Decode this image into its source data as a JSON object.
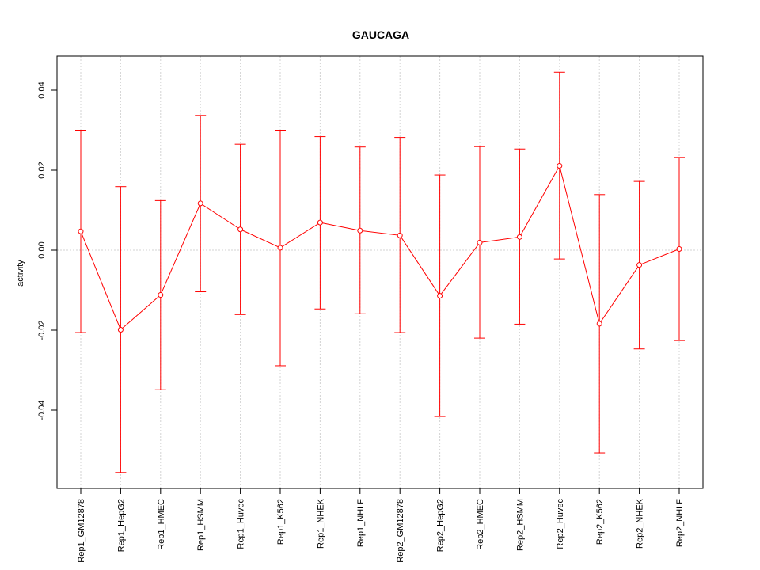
{
  "chart_data": {
    "type": "line",
    "title": "GAUCAGA",
    "xlabel": "",
    "ylabel": "activity",
    "categories": [
      "Rep1_GM12878",
      "Rep1_HepG2",
      "Rep1_HMEC",
      "Rep1_HSMM",
      "Rep1_Huvec",
      "Rep1_K562",
      "Rep1_NHEK",
      "Rep1_NHLF",
      "Rep2_GM12878",
      "Rep2_HepG2",
      "Rep2_HMEC",
      "Rep2_HSMM",
      "Rep2_Huvec",
      "Rep2_K562",
      "Rep2_NHEK",
      "Rep2_NHLF"
    ],
    "values": [
      0.0047,
      -0.0199,
      -0.0112,
      0.0117,
      0.0052,
      0.0006,
      0.0069,
      0.0049,
      0.0037,
      -0.0114,
      0.0019,
      0.0033,
      0.0211,
      -0.0184,
      -0.0037,
      0.0003
    ],
    "upper": [
      0.03,
      0.0159,
      0.0124,
      0.0337,
      0.0265,
      0.03,
      0.0284,
      0.0258,
      0.0282,
      0.0188,
      0.0259,
      0.0253,
      0.0445,
      0.0139,
      0.0172,
      0.0232
    ],
    "lower": [
      -0.0206,
      -0.0556,
      -0.0349,
      -0.0104,
      -0.0161,
      -0.0289,
      -0.0147,
      -0.0159,
      -0.0206,
      -0.0416,
      -0.022,
      -0.0185,
      -0.0022,
      -0.0507,
      -0.0247,
      -0.0226
    ],
    "ylim": [
      -0.06,
      0.0485
    ],
    "yticks": [
      -0.04,
      -0.02,
      0.0,
      0.02,
      0.04
    ],
    "ytick_labels": [
      "-0.04",
      "-0.02",
      "0.00",
      "0.02",
      "0.04"
    ],
    "grid": true,
    "color": "#ff0000",
    "grid_color": "#d3d3d3"
  }
}
